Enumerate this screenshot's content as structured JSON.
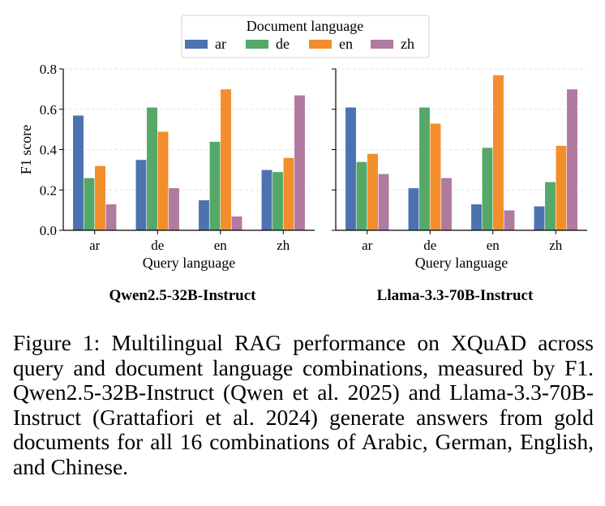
{
  "legend": {
    "title": "Document language",
    "entries": [
      "ar",
      "de",
      "en",
      "zh"
    ]
  },
  "colors": {
    "ar": "#4c72b0",
    "de": "#55a868",
    "en": "#f28e2b",
    "zh": "#b07aa1"
  },
  "caption": "Figure 1: Multilingual RAG performance on XQuAD across query and document language combinations, measured by F1. Qwen2.5-32B-Instruct (Qwen et al. 2025) and Llama-3.3-70B-Instruct (Grattafiori et al. 2024) generate answers from gold documents for all 16 combinations of Arabic, German, English, and Chinese.",
  "chart_data": [
    {
      "type": "bar",
      "title": "Qwen2.5-32B-Instruct",
      "xlabel": "Query language",
      "ylabel": "F1 score",
      "categories": [
        "ar",
        "de",
        "en",
        "zh"
      ],
      "ylim": [
        0,
        0.8
      ],
      "yticks": [
        "0.0",
        "0.2",
        "0.4",
        "0.6",
        "0.8"
      ],
      "grid": true,
      "series": [
        {
          "name": "ar",
          "values": [
            0.57,
            0.35,
            0.15,
            0.3
          ]
        },
        {
          "name": "de",
          "values": [
            0.26,
            0.61,
            0.44,
            0.29
          ]
        },
        {
          "name": "en",
          "values": [
            0.32,
            0.49,
            0.7,
            0.36
          ]
        },
        {
          "name": "zh",
          "values": [
            0.13,
            0.21,
            0.07,
            0.67
          ]
        }
      ]
    },
    {
      "type": "bar",
      "title": "Llama-3.3-70B-Instruct",
      "xlabel": "Query language",
      "ylabel": "",
      "categories": [
        "ar",
        "de",
        "en",
        "zh"
      ],
      "ylim": [
        0,
        0.8
      ],
      "grid": true,
      "series": [
        {
          "name": "ar",
          "values": [
            0.61,
            0.21,
            0.13,
            0.12
          ]
        },
        {
          "name": "de",
          "values": [
            0.34,
            0.61,
            0.41,
            0.24
          ]
        },
        {
          "name": "en",
          "values": [
            0.38,
            0.53,
            0.77,
            0.42
          ]
        },
        {
          "name": "zh",
          "values": [
            0.28,
            0.26,
            0.1,
            0.7
          ]
        }
      ]
    }
  ]
}
